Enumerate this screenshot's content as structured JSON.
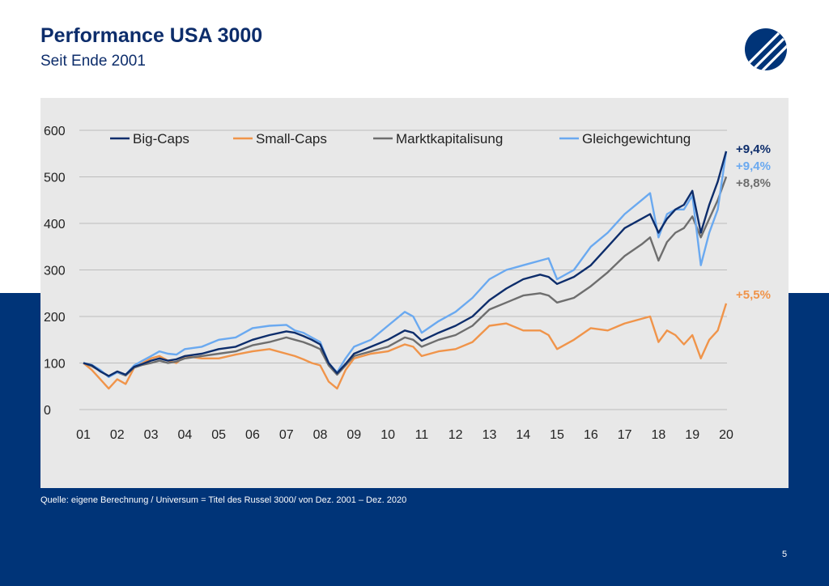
{
  "header": {
    "title": "Performance USA 3000",
    "subtitle": "Seit Ende 2001"
  },
  "footer": {
    "source": "Quelle: eigene Berechnung / Universum = Titel des Russel 3000/ von Dez. 2001 – Dez. 2020",
    "page_number": "5"
  },
  "colors": {
    "navy": "#003478",
    "title_text": "#0d2d6b",
    "panel_bg": "#e8e8e8"
  },
  "logo": {
    "icon": "company-logo-icon"
  },
  "chart_data": {
    "type": "line",
    "title": "",
    "xlabel": "",
    "ylabel": "",
    "xlim": [
      2001,
      2020
    ],
    "ylim": [
      0,
      600
    ],
    "yticks": [
      0,
      100,
      200,
      300,
      400,
      500,
      600
    ],
    "xticks": [
      {
        "v": 2001,
        "label": "01"
      },
      {
        "v": 2002,
        "label": "02"
      },
      {
        "v": 2003,
        "label": "03"
      },
      {
        "v": 2004,
        "label": "04"
      },
      {
        "v": 2005,
        "label": "05"
      },
      {
        "v": 2006,
        "label": "06"
      },
      {
        "v": 2007,
        "label": "07"
      },
      {
        "v": 2008,
        "label": "08"
      },
      {
        "v": 2009,
        "label": "09"
      },
      {
        "v": 2010,
        "label": "10"
      },
      {
        "v": 2011,
        "label": "11"
      },
      {
        "v": 2012,
        "label": "12"
      },
      {
        "v": 2013,
        "label": "13"
      },
      {
        "v": 2014,
        "label": "14"
      },
      {
        "v": 2015,
        "label": "15"
      },
      {
        "v": 2016,
        "label": "16"
      },
      {
        "v": 2017,
        "label": "17"
      },
      {
        "v": 2018,
        "label": "18"
      },
      {
        "v": 2019,
        "label": "19"
      },
      {
        "v": 2020,
        "label": "20"
      }
    ],
    "grid": true,
    "legend_position": "top",
    "series": [
      {
        "name": "Big-Caps",
        "color": "#0d2d6b",
        "end_label": "+9,4%",
        "x": [
          2001,
          2001.25,
          2001.5,
          2001.75,
          2002,
          2002.25,
          2002.5,
          2002.75,
          2003,
          2003.25,
          2003.5,
          2003.75,
          2004,
          2004.5,
          2005,
          2005.5,
          2006,
          2006.5,
          2007,
          2007.25,
          2007.5,
          2007.75,
          2008,
          2008.25,
          2008.5,
          2008.75,
          2009,
          2009.5,
          2010,
          2010.5,
          2010.75,
          2011,
          2011.5,
          2012,
          2012.5,
          2013,
          2013.5,
          2014,
          2014.5,
          2014.75,
          2015,
          2015.5,
          2016,
          2016.5,
          2017,
          2017.5,
          2017.75,
          2018,
          2018.25,
          2018.5,
          2018.75,
          2019,
          2019.25,
          2019.5,
          2019.75,
          2020
        ],
        "values": [
          100,
          95,
          82,
          72,
          82,
          75,
          92,
          98,
          105,
          110,
          105,
          108,
          115,
          120,
          130,
          135,
          150,
          160,
          168,
          165,
          158,
          150,
          140,
          100,
          78,
          98,
          120,
          135,
          150,
          170,
          165,
          148,
          165,
          180,
          200,
          235,
          260,
          280,
          290,
          285,
          270,
          285,
          310,
          350,
          390,
          410,
          420,
          380,
          410,
          430,
          440,
          470,
          380,
          440,
          490,
          555
        ]
      },
      {
        "name": "Small-Caps",
        "color": "#f0944a",
        "end_label": "+5,5%",
        "x": [
          2001,
          2001.25,
          2001.5,
          2001.75,
          2002,
          2002.25,
          2002.5,
          2002.75,
          2003,
          2003.25,
          2003.5,
          2003.75,
          2004,
          2004.5,
          2005,
          2005.5,
          2006,
          2006.5,
          2007,
          2007.25,
          2007.5,
          2007.75,
          2008,
          2008.25,
          2008.5,
          2008.75,
          2009,
          2009.5,
          2010,
          2010.5,
          2010.75,
          2011,
          2011.5,
          2012,
          2012.5,
          2013,
          2013.5,
          2014,
          2014.5,
          2014.75,
          2015,
          2015.5,
          2016,
          2016.5,
          2017,
          2017.5,
          2017.75,
          2018,
          2018.25,
          2018.5,
          2018.75,
          2019,
          2019.25,
          2019.5,
          2019.75,
          2020
        ],
        "values": [
          100,
          85,
          65,
          45,
          65,
          55,
          90,
          100,
          110,
          115,
          105,
          100,
          115,
          110,
          110,
          118,
          125,
          130,
          120,
          115,
          108,
          100,
          95,
          60,
          45,
          85,
          110,
          120,
          125,
          140,
          135,
          115,
          125,
          130,
          145,
          180,
          185,
          170,
          170,
          160,
          130,
          150,
          175,
          170,
          185,
          195,
          200,
          145,
          170,
          160,
          140,
          160,
          110,
          150,
          170,
          228
        ]
      },
      {
        "name": "Marktkapitalisung",
        "color": "#6e6e6e",
        "end_label": "+8,8%",
        "x": [
          2001,
          2001.25,
          2001.5,
          2001.75,
          2002,
          2002.25,
          2002.5,
          2002.75,
          2003,
          2003.25,
          2003.5,
          2003.75,
          2004,
          2004.5,
          2005,
          2005.5,
          2006,
          2006.5,
          2007,
          2007.25,
          2007.5,
          2007.75,
          2008,
          2008.25,
          2008.5,
          2008.75,
          2009,
          2009.5,
          2010,
          2010.5,
          2010.75,
          2011,
          2011.5,
          2012,
          2012.5,
          2013,
          2013.5,
          2014,
          2014.5,
          2014.75,
          2015,
          2015.5,
          2016,
          2016.5,
          2017,
          2017.5,
          2017.75,
          2018,
          2018.25,
          2018.5,
          2018.75,
          2019,
          2019.25,
          2019.5,
          2019.75,
          2020
        ],
        "values": [
          100,
          93,
          83,
          72,
          80,
          73,
          90,
          96,
          100,
          105,
          100,
          103,
          110,
          115,
          120,
          125,
          138,
          145,
          155,
          150,
          145,
          138,
          130,
          95,
          75,
          95,
          115,
          125,
          135,
          155,
          150,
          135,
          150,
          160,
          180,
          215,
          230,
          245,
          250,
          245,
          230,
          240,
          265,
          295,
          330,
          355,
          370,
          320,
          360,
          380,
          390,
          415,
          370,
          410,
          450,
          500
        ]
      },
      {
        "name": "Gleichgewichtung",
        "color": "#6aa9f0",
        "end_label": "+9,4%",
        "x": [
          2001,
          2001.25,
          2001.5,
          2001.75,
          2002,
          2002.25,
          2002.5,
          2002.75,
          2003,
          2003.25,
          2003.5,
          2003.75,
          2004,
          2004.5,
          2005,
          2005.5,
          2006,
          2006.5,
          2007,
          2007.25,
          2007.5,
          2007.75,
          2008,
          2008.25,
          2008.5,
          2008.75,
          2009,
          2009.5,
          2010,
          2010.5,
          2010.75,
          2011,
          2011.5,
          2012,
          2012.5,
          2013,
          2013.5,
          2014,
          2014.5,
          2014.75,
          2015,
          2015.5,
          2016,
          2016.5,
          2017,
          2017.5,
          2017.75,
          2018,
          2018.25,
          2018.5,
          2018.75,
          2019,
          2019.25,
          2019.5,
          2019.75,
          2020
        ],
        "values": [
          100,
          96,
          85,
          70,
          80,
          75,
          95,
          105,
          115,
          125,
          120,
          118,
          130,
          135,
          150,
          155,
          175,
          180,
          182,
          170,
          165,
          155,
          145,
          100,
          80,
          110,
          135,
          150,
          180,
          210,
          200,
          165,
          190,
          210,
          240,
          280,
          300,
          310,
          320,
          325,
          280,
          300,
          350,
          380,
          420,
          450,
          465,
          370,
          420,
          430,
          430,
          460,
          310,
          380,
          430,
          555
        ]
      }
    ]
  }
}
